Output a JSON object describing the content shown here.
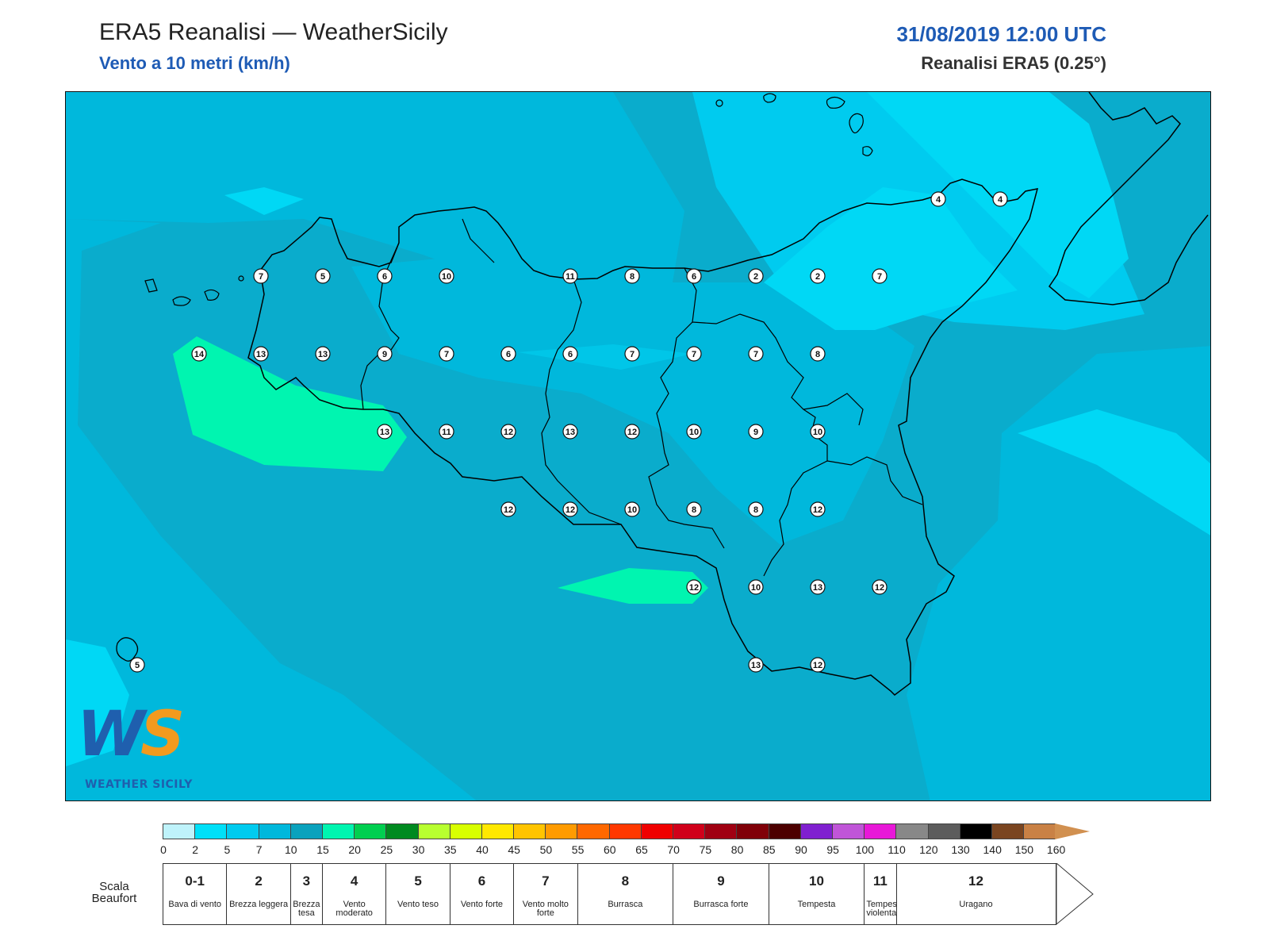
{
  "header": {
    "title": "ERA5 Reanalisi — WeatherSicily",
    "subtitle": "Vento a 10 metri (km/h)",
    "datetime": "31/08/2019 12:00 UTC",
    "model": "Reanalisi ERA5 (0.25°)"
  },
  "logo": {
    "letters_w": "W",
    "letters_s": "S",
    "name": "WEATHER SICILY"
  },
  "map": {
    "background_color": "#0aaccc",
    "station_values": [
      {
        "row": 1,
        "col": 4,
        "v": "7"
      },
      {
        "row": 1,
        "col": 5,
        "v": "5"
      },
      {
        "row": 1,
        "col": 6,
        "v": "6"
      },
      {
        "row": 1,
        "col": 7,
        "v": "10"
      },
      {
        "row": 1,
        "col": 9,
        "v": "11"
      },
      {
        "row": 1,
        "col": 10,
        "v": "8"
      },
      {
        "row": 1,
        "col": 11,
        "v": "6"
      },
      {
        "row": 1,
        "col": 12,
        "v": "2"
      },
      {
        "row": 1,
        "col": 13,
        "v": "2"
      },
      {
        "row": 1,
        "col": 14,
        "v": "7"
      },
      {
        "row": 2,
        "col": 3,
        "v": "14"
      },
      {
        "row": 2,
        "col": 4,
        "v": "13"
      },
      {
        "row": 2,
        "col": 5,
        "v": "13"
      },
      {
        "row": 2,
        "col": 6,
        "v": "9"
      },
      {
        "row": 2,
        "col": 7,
        "v": "7"
      },
      {
        "row": 2,
        "col": 8,
        "v": "6"
      },
      {
        "row": 2,
        "col": 9,
        "v": "6"
      },
      {
        "row": 2,
        "col": 10,
        "v": "7"
      },
      {
        "row": 2,
        "col": 11,
        "v": "7"
      },
      {
        "row": 2,
        "col": 12,
        "v": "7"
      },
      {
        "row": 2,
        "col": 13,
        "v": "8"
      },
      {
        "row": 3,
        "col": 6,
        "v": "13"
      },
      {
        "row": 3,
        "col": 7,
        "v": "11"
      },
      {
        "row": 3,
        "col": 8,
        "v": "12"
      },
      {
        "row": 3,
        "col": 9,
        "v": "13"
      },
      {
        "row": 3,
        "col": 10,
        "v": "12"
      },
      {
        "row": 3,
        "col": 11,
        "v": "10"
      },
      {
        "row": 3,
        "col": 12,
        "v": "9"
      },
      {
        "row": 3,
        "col": 13,
        "v": "10"
      },
      {
        "row": 4,
        "col": 8,
        "v": "12"
      },
      {
        "row": 4,
        "col": 9,
        "v": "12"
      },
      {
        "row": 4,
        "col": 10,
        "v": "10"
      },
      {
        "row": 4,
        "col": 11,
        "v": "8"
      },
      {
        "row": 4,
        "col": 12,
        "v": "8"
      },
      {
        "row": 4,
        "col": 13,
        "v": "12"
      },
      {
        "row": 5,
        "col": 11,
        "v": "12"
      },
      {
        "row": 5,
        "col": 12,
        "v": "10"
      },
      {
        "row": 5,
        "col": 13,
        "v": "13"
      },
      {
        "row": 5,
        "col": 14,
        "v": "12"
      },
      {
        "row": 6,
        "col": 12,
        "v": "13"
      },
      {
        "row": 6,
        "col": 13,
        "v": "12"
      },
      {
        "row": 0,
        "col": 14,
        "v": "4"
      },
      {
        "row": 0,
        "col": 15,
        "v": "4"
      },
      {
        "row": 7,
        "col": 2,
        "v": "5"
      }
    ]
  },
  "colorbar": {
    "colors": [
      "#bff3fb",
      "#00e0f8",
      "#00cbef",
      "#00b8dc",
      "#0aa2bd",
      "#00f5b0",
      "#00cf50",
      "#008a20",
      "#b8ff30",
      "#d8ff00",
      "#ffe800",
      "#ffc400",
      "#ff9b00",
      "#ff6800",
      "#ff3800",
      "#f00000",
      "#d0001a",
      "#a00012",
      "#800008",
      "#4c0000",
      "#8020d0",
      "#c055d8",
      "#e818d8",
      "#888888",
      "#5c5c5c",
      "#000000",
      "#7a4520",
      "#c98145"
    ],
    "arrow_color": "#d19050",
    "ticks": [
      "0",
      "2",
      "5",
      "7",
      "10",
      "15",
      "20",
      "25",
      "30",
      "35",
      "40",
      "45",
      "50",
      "55",
      "60",
      "65",
      "70",
      "75",
      "80",
      "85",
      "90",
      "95",
      "100",
      "110",
      "120",
      "130",
      "140",
      "150",
      "160"
    ]
  },
  "beaufort": {
    "label": "Scala Beaufort",
    "cells": [
      {
        "num": "0-1",
        "desc": "Bava di vento",
        "span": 2
      },
      {
        "num": "2",
        "desc": "Brezza leggera",
        "span": 2
      },
      {
        "num": "3",
        "desc": "Brezza tesa",
        "span": 1
      },
      {
        "num": "4",
        "desc": "Vento moderato",
        "span": 2
      },
      {
        "num": "5",
        "desc": "Vento teso",
        "span": 2
      },
      {
        "num": "6",
        "desc": "Vento forte",
        "span": 2
      },
      {
        "num": "7",
        "desc": "Vento molto forte",
        "span": 2
      },
      {
        "num": "8",
        "desc": "Burrasca",
        "span": 3
      },
      {
        "num": "9",
        "desc": "Burrasca forte",
        "span": 3
      },
      {
        "num": "10",
        "desc": "Tempesta",
        "span": 3
      },
      {
        "num": "11",
        "desc": "Tempesta violenta",
        "span": 1
      },
      {
        "num": "12",
        "desc": "Uragano",
        "span": 5
      }
    ]
  }
}
